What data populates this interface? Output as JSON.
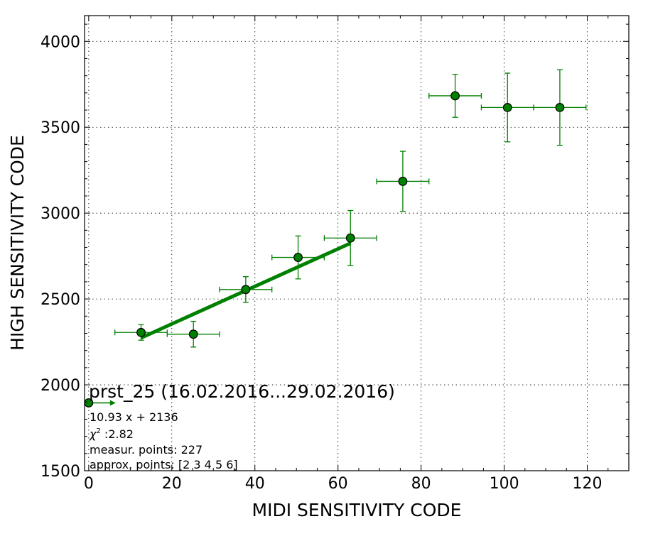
{
  "chart_data": {
    "type": "scatter",
    "title": "prst_25 (16.02.2016...29.02.2016)",
    "xlabel": "MIDI SENSITIVITY CODE",
    "ylabel": "HIGH SENSITIVITY CODE",
    "xlim": [
      -1,
      130
    ],
    "ylim": [
      1500,
      4150
    ],
    "x_ticks": [
      0,
      20,
      40,
      60,
      80,
      100,
      120
    ],
    "y_ticks": [
      1500,
      2000,
      2500,
      3000,
      3500,
      4000
    ],
    "grid": true,
    "color": "#008000",
    "points": [
      {
        "x": 0.0,
        "y": 1895,
        "xerr": 0,
        "yerr": 0,
        "arrow_dx": 6.5
      },
      {
        "x": 12.6,
        "y": 2305,
        "xerr": 6.3,
        "yerr": 45
      },
      {
        "x": 25.2,
        "y": 2295,
        "xerr": 6.3,
        "yerr": 75
      },
      {
        "x": 37.8,
        "y": 2555,
        "xerr": 6.3,
        "yerr": 75
      },
      {
        "x": 50.4,
        "y": 2742,
        "xerr": 6.3,
        "yerr": 125
      },
      {
        "x": 63.0,
        "y": 2855,
        "xerr": 6.3,
        "yerr": 160
      },
      {
        "x": 75.6,
        "y": 3185,
        "xerr": 6.3,
        "yerr": 175
      },
      {
        "x": 88.2,
        "y": 3683,
        "xerr": 6.3,
        "yerr": 125
      },
      {
        "x": 100.8,
        "y": 3615,
        "xerr": 6.3,
        "yerr": 200
      },
      {
        "x": 113.4,
        "y": 3615,
        "xerr": 6.3,
        "yerr": 220
      }
    ],
    "fit": {
      "slope": 10.93,
      "intercept": 2136,
      "x_range": [
        12.6,
        63.0
      ]
    },
    "annotations": {
      "equation": "10.93 x + 2136",
      "chi2_symbol": "χ",
      "chi2_exp": "2",
      "chi2_value": " :2.82",
      "measur_points": "measur. points: 227",
      "approx_points": "approx. points: [2 3 4 5 6]"
    }
  }
}
